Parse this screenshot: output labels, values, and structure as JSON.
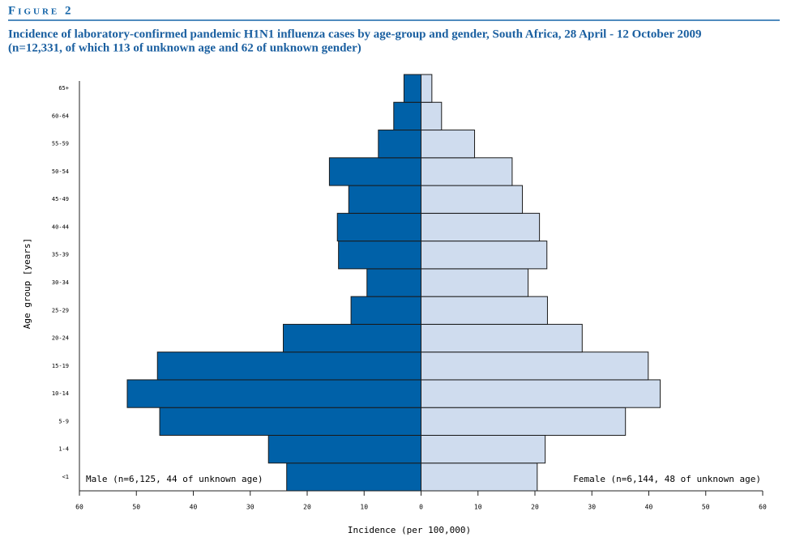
{
  "chart_data": {
    "type": "pyramid",
    "figure_label": "Figure 2",
    "title": "Incidence of laboratory-confirmed pandemic H1N1 influenza cases by age-group and gender, South Africa, 28 April - 12 October 2009",
    "subtitle": "(n=12,331, of which 113 of unknown age and 62 of unknown gender)",
    "x_label": "Incidence (per 100,000)",
    "y_label": "Age group [years]",
    "categories": [
      "<1",
      "1-4",
      "5-9",
      "10-14",
      "15-19",
      "20-24",
      "25-29",
      "30-34",
      "35-39",
      "40-44",
      "45-49",
      "50-54",
      "55-59",
      "60-64",
      "65+"
    ],
    "series": [
      {
        "name": "Male (n=6,125, 44 of unknown age)",
        "color": "#0061a8",
        "side": "left",
        "values": [
          23.6,
          26.8,
          45.9,
          51.6,
          46.3,
          24.2,
          12.3,
          9.5,
          14.5,
          14.7,
          12.7,
          16.1,
          7.5,
          4.8,
          3.0
        ]
      },
      {
        "name": "Female (n=6,144, 48 of unknown age)",
        "color": "#cfdcee",
        "side": "right",
        "values": [
          20.4,
          21.8,
          35.9,
          42.0,
          39.9,
          28.3,
          22.2,
          18.8,
          22.1,
          20.8,
          17.8,
          16.0,
          9.4,
          3.6,
          1.9
        ]
      }
    ],
    "xlim": [
      -60,
      60
    ],
    "xticks": [
      {
        "value": -60,
        "label": "60"
      },
      {
        "value": -50,
        "label": "50"
      },
      {
        "value": -40,
        "label": "40"
      },
      {
        "value": -30,
        "label": "30"
      },
      {
        "value": -20,
        "label": "20"
      },
      {
        "value": -10,
        "label": "10"
      },
      0,
      10,
      20,
      30,
      40,
      50,
      60
    ]
  }
}
